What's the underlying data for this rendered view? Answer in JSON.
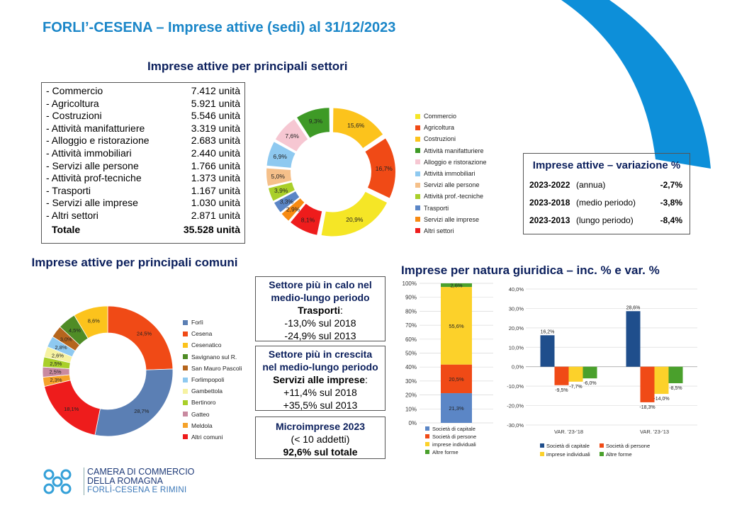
{
  "page": {
    "title": "FORLI’-CESENA – Imprese attive (sedi) al 31/12/2023",
    "accent_color": "#1a86c8",
    "heading_color": "#0b1f5c"
  },
  "sectors": {
    "title": "Imprese attive per principali settori",
    "rows": [
      {
        "name": "- Commercio",
        "value": "7.412 unità"
      },
      {
        "name": "- Agricoltura",
        "value": "5.921 unità"
      },
      {
        "name": "- Costruzioni",
        "value": "5.546 unità"
      },
      {
        "name": "- Attività manifatturiere",
        "value": "3.319 unità"
      },
      {
        "name": "- Alloggio e ristorazione",
        "value": "2.683 unità"
      },
      {
        "name": "- Attività immobiliari",
        "value": "2.440 unità"
      },
      {
        "name": "- Servizi alle persone",
        "value": "1.766 unità"
      },
      {
        "name": "- Attività prof-tecniche",
        "value": "1.373 unità"
      },
      {
        "name": "- Trasporti",
        "value": "1.167 unità"
      },
      {
        "name": "- Servizi alle imprese",
        "value": "1.030 unità"
      },
      {
        "name": "- Altri settori",
        "value": "2.871 unità"
      }
    ],
    "total": {
      "name": "Totale",
      "value": "35.528 unità"
    }
  },
  "variation": {
    "title": "Imprese attive – variazione %",
    "rows": [
      {
        "period": "2023-2022",
        "desc": "(annua)",
        "value": "-2,7%"
      },
      {
        "period": "2023-2018",
        "desc": "(medio periodo)",
        "value": "-3,8%"
      },
      {
        "period": "2023-2013",
        "desc": "(lungo periodo)",
        "value": "-8,4%"
      }
    ]
  },
  "comuni": {
    "title": "Imprese attive per principali comuni"
  },
  "natura": {
    "title": "Imprese per natura giuridica – inc. % e var. %"
  },
  "box_calo": {
    "line1": "Settore più in calo nel",
    "line2": "medio-lungo periodo",
    "sector": "Trasporti",
    "suffix": ":",
    "v1": "-13,0% sul 2018",
    "v2": "-24,9% sul 2013"
  },
  "box_crescita": {
    "line1": "Settore più in crescita",
    "line2": "nel medio-lungo periodo",
    "sector": "Servizi alle imprese",
    "suffix": ":",
    "v1": "+11,4% sul 2018",
    "v2": "+35,5% sul 2013"
  },
  "box_micro": {
    "line1": "Microimprese 2023",
    "line2": "(< 10 addetti)",
    "line3": "92,6% sul totale"
  },
  "logo": {
    "line1": "CAMERA DI COMMERCIO",
    "line2": "DELLA ROMAGNA",
    "line3": "FORLÌ-CESENA E RIMINI",
    "icon": "chamber-of-commerce-logo-icon"
  },
  "chart_data": [
    {
      "id": "sectors",
      "type": "pie",
      "donut": true,
      "slices": [
        {
          "label": "Commercio",
          "value": 20.9,
          "display": "20,9%",
          "color": "#f5e626"
        },
        {
          "label": "Agricoltura",
          "value": 16.7,
          "display": "16,7%",
          "color": "#f04a16"
        },
        {
          "label": "Costruzioni",
          "value": 15.6,
          "display": "15,6%",
          "color": "#fcc31c"
        },
        {
          "label": "Attività manifatturiere",
          "value": 9.3,
          "display": "9,3%",
          "color": "#3e9a26"
        },
        {
          "label": "Alloggio e ristorazione",
          "value": 7.6,
          "display": "7,6%",
          "color": "#f6c7d2"
        },
        {
          "label": "Attività immobiliari",
          "value": 6.9,
          "display": "6,9%",
          "color": "#8ec9f0"
        },
        {
          "label": "Servizi alle persone",
          "value": 5.0,
          "display": "5,0%",
          "color": "#f5c08a"
        },
        {
          "label": "Attività prof.-tecniche",
          "value": 3.9,
          "display": "3,9%",
          "color": "#a9cf2a"
        },
        {
          "label": "Trasporti",
          "value": 3.3,
          "display": "3,3%",
          "color": "#5b86c6"
        },
        {
          "label": "Servizi alle imprese",
          "value": 2.9,
          "display": "2,9%",
          "color": "#f78a12"
        },
        {
          "label": "Altri settori",
          "value": 8.1,
          "display": "8,1%",
          "color": "#ee1c1c"
        }
      ],
      "order_clockwise_from_top": [
        "Costruzioni",
        "Agricoltura",
        "Commercio",
        "Altri settori",
        "Servizi alle imprese",
        "Trasporti",
        "Attività prof.-tecniche",
        "Servizi alle persone",
        "Attività immobiliari",
        "Alloggio e ristorazione",
        "Attività manifatturiere"
      ],
      "legend": [
        "Commercio",
        "Agricoltura",
        "Costruzioni",
        "Attività manifatturiere",
        "Alloggio e ristorazione",
        "Attività immobiliari",
        "Servizi alle persone",
        "Attività prof.-tecniche",
        "Trasporti",
        "Servizi alle imprese",
        "Altri settori"
      ],
      "exploded": true
    },
    {
      "id": "comuni",
      "type": "pie",
      "donut": true,
      "slices": [
        {
          "label": "Forlì",
          "value": 28.7,
          "display": "28,7%",
          "color": "#5b7fb4"
        },
        {
          "label": "Cesena",
          "value": 24.5,
          "display": "24,5%",
          "color": "#f04a16"
        },
        {
          "label": "Cesenatico",
          "value": 8.6,
          "display": "8,6%",
          "color": "#fcc31c"
        },
        {
          "label": "Savignano sul R.",
          "value": 4.5,
          "display": "4,5%",
          "color": "#4f8c26"
        },
        {
          "label": "San Mauro Pascoli",
          "value": 3.0,
          "display": "3,0%",
          "color": "#b5651d"
        },
        {
          "label": "Forlimpopoli",
          "value": 2.8,
          "display": "2,8%",
          "color": "#8ec9f0"
        },
        {
          "label": "Gambettola",
          "value": 2.6,
          "display": "2,6%",
          "color": "#f6f2a2"
        },
        {
          "label": "Bertinoro",
          "value": 2.5,
          "display": "2,5%",
          "color": "#a9cf2a"
        },
        {
          "label": "Gatteo",
          "value": 2.5,
          "display": "2,5%",
          "color": "#c98aa0"
        },
        {
          "label": "Meldola",
          "value": 2.3,
          "display": "2,3%",
          "color": "#f5a22a"
        },
        {
          "label": "Altri comuni",
          "value": 18.1,
          "display": "18,1%",
          "color": "#ee1c1c"
        }
      ],
      "order_clockwise_from_top": [
        "Cesena",
        "Forlì",
        "Altri comuni",
        "Meldola",
        "Gatteo",
        "Bertinoro",
        "Gambettola",
        "Forlimpopoli",
        "San Mauro Pascoli",
        "Savignano sul R.",
        "Cesenatico"
      ],
      "legend": [
        "Forlì",
        "Cesena",
        "Cesenatico",
        "Savignano sul R.",
        "San Mauro Pascoli",
        "Forlimpopoli",
        "Gambettola",
        "Bertinoro",
        "Gatteo",
        "Meldola",
        "Altri comuni"
      ]
    },
    {
      "id": "natura_inc",
      "type": "bar",
      "stacked": true,
      "categories": [
        ""
      ],
      "series": [
        {
          "name": "Società di capitale",
          "values": [
            21.3
          ],
          "display": [
            "21,3%"
          ],
          "color": "#5b86c6"
        },
        {
          "name": "Società di persone",
          "values": [
            20.5
          ],
          "display": [
            "20,5%"
          ],
          "color": "#f04a16"
        },
        {
          "name": "imprese individuali",
          "values": [
            55.6
          ],
          "display": [
            "55,6%"
          ],
          "color": "#fcd12a"
        },
        {
          "name": "Altre forme",
          "values": [
            2.6
          ],
          "display": [
            "2,6%"
          ],
          "color": "#4aa02c"
        }
      ],
      "ylim": [
        0,
        100
      ],
      "yticks": [
        "0%",
        "10%",
        "20%",
        "30%",
        "40%",
        "50%",
        "60%",
        "70%",
        "80%",
        "90%",
        "100%"
      ],
      "grid": true
    },
    {
      "id": "natura_var",
      "type": "bar",
      "categories": [
        "VAR. '23-'18",
        "VAR. '23-'13"
      ],
      "series": [
        {
          "name": "Società di capitale",
          "values": [
            16.2,
            28.6
          ],
          "display": [
            "16,2%",
            "28,6%"
          ],
          "color": "#1f4e8c"
        },
        {
          "name": "Società di persone",
          "values": [
            -9.5,
            -18.3
          ],
          "display": [
            "-9,5%",
            "-18,3%"
          ],
          "color": "#f04a16"
        },
        {
          "name": "imprese individuali",
          "values": [
            -7.7,
            -14.0
          ],
          "display": [
            "-7,7%",
            "-14,0%"
          ],
          "color": "#fcd12a"
        },
        {
          "name": "Altre forme",
          "values": [
            -6.0,
            -8.5
          ],
          "display": [
            "-6,0%",
            "-8,5%"
          ],
          "color": "#4aa02c"
        }
      ],
      "ylim": [
        -30,
        40
      ],
      "yticks": [
        "-30,0%",
        "-20,0%",
        "-10,0%",
        "0,0%",
        "10,0%",
        "20,0%",
        "30,0%",
        "40,0%"
      ],
      "grid": true,
      "legend": "bottom"
    }
  ]
}
